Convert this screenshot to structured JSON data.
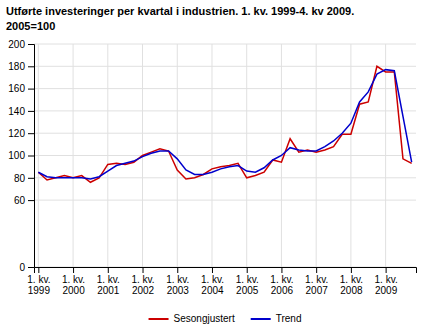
{
  "chart_data": {
    "type": "line",
    "title": "Utførte investeringer per kvartal i industrien. 1. kv. 1999-4. kv 2009.",
    "subtitle": "2005=100",
    "categories": [
      "1. kv.\n1999",
      null,
      null,
      null,
      "1. kv.\n2000",
      null,
      null,
      null,
      "1. kv.\n2001",
      null,
      null,
      null,
      "1. kv.\n2002",
      null,
      null,
      null,
      "1. kv.\n2003",
      null,
      null,
      null,
      "1. kv.\n2004",
      null,
      null,
      null,
      "1. kv.\n2005",
      null,
      null,
      null,
      "1. kv.\n2006",
      null,
      null,
      null,
      "1. kv.\n2007",
      null,
      null,
      null,
      "1. kv.\n2008",
      null,
      null,
      null,
      "1. kv.\n2009",
      null,
      null,
      null
    ],
    "series": [
      {
        "name": "Sesongjustert",
        "color": "#cc0000",
        "values": [
          85,
          78,
          80,
          82,
          80,
          82,
          76,
          80,
          92,
          93,
          92,
          94,
          100,
          103,
          106,
          104,
          87,
          79,
          80,
          83,
          88,
          90,
          91,
          93,
          80,
          82,
          85,
          96,
          94,
          115,
          103,
          105,
          103,
          105,
          108,
          119,
          119,
          146,
          148,
          180,
          175,
          175,
          97,
          93
        ]
      },
      {
        "name": "Trend",
        "color": "#0000cc",
        "values": [
          85,
          81,
          80,
          80,
          80,
          80,
          79,
          81,
          86,
          91,
          93,
          95,
          99,
          102,
          104,
          104,
          97,
          87,
          83,
          83,
          85,
          88,
          90,
          91,
          86,
          85,
          89,
          96,
          100,
          107,
          105,
          104,
          104,
          108,
          113,
          120,
          129,
          148,
          157,
          173,
          177,
          176,
          135,
          94
        ]
      }
    ],
    "ylim": [
      0,
      200
    ],
    "yticks": [
      0,
      60,
      80,
      100,
      120,
      140,
      160,
      180,
      200
    ],
    "grid": true,
    "legend": "bottom"
  }
}
